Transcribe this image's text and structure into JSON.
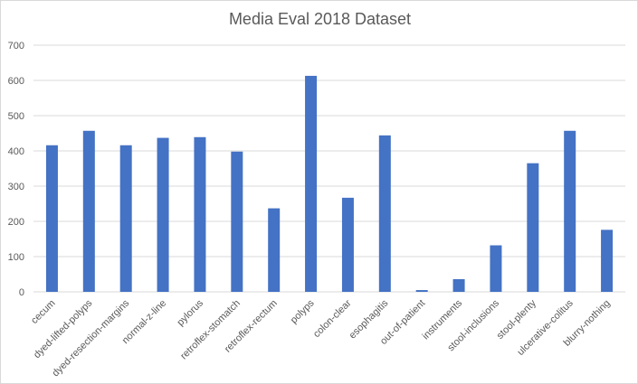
{
  "chart_data": {
    "type": "bar",
    "title": "Media Eval 2018 Dataset",
    "xlabel": "",
    "ylabel": "",
    "ylim": [
      0,
      700
    ],
    "yticks": [
      0,
      100,
      200,
      300,
      400,
      500,
      600,
      700
    ],
    "grid": true,
    "legend": "none",
    "bar_color": "#4472c4",
    "categories": [
      "cecum",
      "dyed-lifted-polyps",
      "dyed-resection-margins",
      "normal-z-line",
      "pylorus",
      "retroflex-stomatch",
      "retroflex-rectum",
      "polyps",
      "colon-clear",
      "esophagitis",
      "out-of-patient",
      "instruments",
      "stool-inclusions",
      "stool-plenty",
      "ulcerative-colitus",
      "blurry-nothing"
    ],
    "values": [
      416,
      457,
      416,
      437,
      439,
      398,
      237,
      613,
      267,
      444,
      5,
      36,
      132,
      365,
      457,
      176
    ]
  }
}
